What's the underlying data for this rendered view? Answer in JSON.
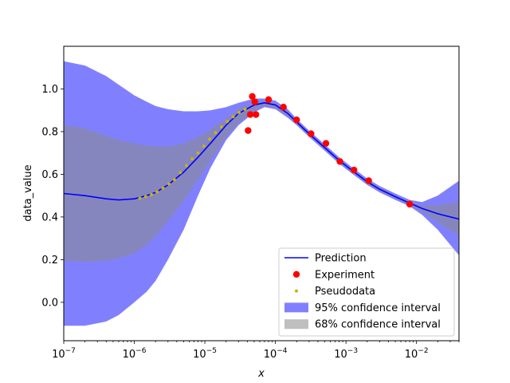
{
  "chart_data": {
    "type": "line",
    "xscale": "log",
    "xlim": [
      1e-07,
      0.04
    ],
    "ylim": [
      -0.18,
      1.2
    ],
    "xlabel": "x",
    "ylabel": "data_value",
    "x_ticks": [
      {
        "value": 1e-07,
        "base": "10",
        "exp": "−7"
      },
      {
        "value": 1e-06,
        "base": "10",
        "exp": "−6"
      },
      {
        "value": 1e-05,
        "base": "10",
        "exp": "−5"
      },
      {
        "value": 0.0001,
        "base": "10",
        "exp": "−4"
      },
      {
        "value": 0.001,
        "base": "10",
        "exp": "−3"
      },
      {
        "value": 0.01,
        "base": "10",
        "exp": "−2"
      }
    ],
    "y_ticks": [
      {
        "value": 0.0,
        "label": "0.0"
      },
      {
        "value": 0.2,
        "label": "0.2"
      },
      {
        "value": 0.4,
        "label": "0.4"
      },
      {
        "value": 0.6,
        "label": "0.6"
      },
      {
        "value": 0.8,
        "label": "0.8"
      },
      {
        "value": 1.0,
        "label": "1.0"
      }
    ],
    "legend_position": "lower-right",
    "colors": {
      "prediction": "#0000ff",
      "experiment": "#ff0000",
      "pseudodata": "#c8b400",
      "ci95": "#8080ff",
      "ci68": "#8a8a8a"
    },
    "series": [
      {
        "name": "Prediction",
        "kind": "line",
        "x": [
          1e-07,
          2e-07,
          4e-07,
          6e-07,
          1e-06,
          1.5e-06,
          2e-06,
          3e-06,
          5e-06,
          8e-06,
          1.2e-05,
          2e-05,
          3e-05,
          5e-05,
          7e-05,
          0.0001,
          0.00015,
          0.0002,
          0.0003,
          0.0005,
          0.0008,
          0.0012,
          0.002,
          0.003,
          0.005,
          0.008,
          0.012,
          0.02,
          0.04
        ],
        "y": [
          0.51,
          0.5,
          0.485,
          0.48,
          0.485,
          0.5,
          0.515,
          0.55,
          0.61,
          0.68,
          0.745,
          0.83,
          0.885,
          0.925,
          0.935,
          0.925,
          0.885,
          0.845,
          0.79,
          0.725,
          0.665,
          0.62,
          0.565,
          0.53,
          0.495,
          0.465,
          0.44,
          0.415,
          0.39
        ]
      },
      {
        "name": "Experiment",
        "kind": "points",
        "x": [
          4.1e-05,
          4.4e-05,
          4.7e-05,
          5.1e-05,
          5.3e-05,
          8e-05,
          0.00013,
          0.0002,
          0.00032,
          0.00052,
          0.00082,
          0.0013,
          0.0021,
          0.008
        ],
        "y": [
          0.805,
          0.88,
          0.965,
          0.94,
          0.88,
          0.95,
          0.915,
          0.855,
          0.79,
          0.745,
          0.66,
          0.62,
          0.57,
          0.46
        ]
      },
      {
        "name": "Pseudodata",
        "kind": "points",
        "x": [
          1.2e-06,
          1.45e-06,
          1.75e-06,
          2.1e-06,
          2.55e-06,
          3.1e-06,
          3.7e-06,
          4.5e-06,
          5.5e-06,
          6.6e-06,
          8e-06,
          9.7e-06,
          1.17e-05,
          1.42e-05,
          1.72e-05,
          2.08e-05,
          2.52e-05,
          3.05e-05,
          3.7e-05
        ],
        "y": [
          0.488,
          0.495,
          0.505,
          0.518,
          0.535,
          0.555,
          0.575,
          0.608,
          0.64,
          0.672,
          0.7,
          0.732,
          0.765,
          0.795,
          0.822,
          0.848,
          0.87,
          0.89,
          0.905
        ]
      },
      {
        "name": "95% confidence interval",
        "kind": "band",
        "x": [
          1e-07,
          2e-07,
          4e-07,
          6e-07,
          1e-06,
          1.5e-06,
          2e-06,
          3e-06,
          5e-06,
          8e-06,
          1.2e-05,
          2e-05,
          3e-05,
          5e-05,
          7e-05,
          0.0001,
          0.00015,
          0.0002,
          0.0003,
          0.0005,
          0.0008,
          0.0012,
          0.002,
          0.003,
          0.005,
          0.008,
          0.012,
          0.02,
          0.04
        ],
        "lower": [
          -0.11,
          -0.11,
          -0.09,
          -0.06,
          0.0,
          0.05,
          0.1,
          0.2,
          0.34,
          0.5,
          0.63,
          0.76,
          0.83,
          0.89,
          0.915,
          0.905,
          0.865,
          0.83,
          0.775,
          0.71,
          0.65,
          0.605,
          0.55,
          0.515,
          0.48,
          0.45,
          0.41,
          0.34,
          0.22
        ],
        "upper": [
          1.13,
          1.11,
          1.06,
          1.02,
          0.97,
          0.94,
          0.92,
          0.905,
          0.895,
          0.895,
          0.9,
          0.915,
          0.935,
          0.955,
          0.955,
          0.945,
          0.905,
          0.86,
          0.805,
          0.74,
          0.68,
          0.635,
          0.58,
          0.545,
          0.51,
          0.48,
          0.47,
          0.5,
          0.57
        ]
      },
      {
        "name": "68% confidence interval",
        "kind": "band",
        "x": [
          1e-07,
          2e-07,
          4e-07,
          6e-07,
          1e-06,
          1.5e-06,
          2e-06,
          3e-06,
          5e-06,
          8e-06,
          1.2e-05,
          2e-05,
          3e-05,
          5e-05,
          7e-05,
          0.0001,
          0.00015,
          0.0002,
          0.0003,
          0.0005,
          0.0008,
          0.0012,
          0.002,
          0.003,
          0.005,
          0.008,
          0.012,
          0.02,
          0.04
        ],
        "lower": [
          0.195,
          0.19,
          0.195,
          0.205,
          0.23,
          0.27,
          0.31,
          0.38,
          0.475,
          0.575,
          0.665,
          0.775,
          0.84,
          0.9,
          0.92,
          0.912,
          0.873,
          0.836,
          0.781,
          0.717,
          0.656,
          0.611,
          0.556,
          0.521,
          0.487,
          0.457,
          0.425,
          0.376,
          0.31
        ],
        "upper": [
          0.83,
          0.815,
          0.78,
          0.76,
          0.745,
          0.735,
          0.73,
          0.73,
          0.745,
          0.775,
          0.81,
          0.86,
          0.905,
          0.94,
          0.945,
          0.935,
          0.895,
          0.852,
          0.797,
          0.732,
          0.672,
          0.627,
          0.572,
          0.538,
          0.502,
          0.472,
          0.455,
          0.455,
          0.47
        ]
      }
    ],
    "legend": [
      {
        "label": "Prediction",
        "symbol": "line"
      },
      {
        "label": "Experiment",
        "symbol": "dot-large"
      },
      {
        "label": "Pseudodata",
        "symbol": "dot-small"
      },
      {
        "label": "95% confidence interval",
        "symbol": "patch-95"
      },
      {
        "label": "68% confidence interval",
        "symbol": "patch-68"
      }
    ]
  }
}
